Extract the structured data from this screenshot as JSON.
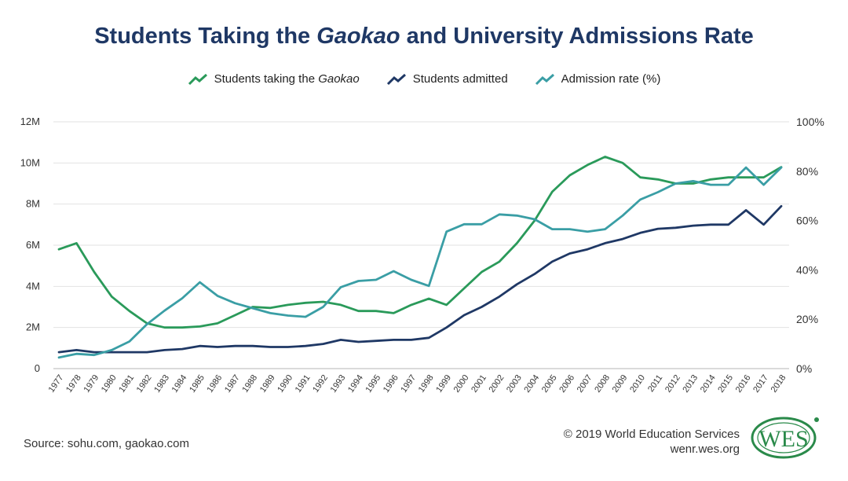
{
  "title_prefix": "Students Taking the ",
  "title_italic": "Gaokao",
  "title_suffix": " and University Admissions Rate",
  "legend": [
    {
      "prefix": "Students taking the ",
      "italic": "Gaokao",
      "color": "#2a9a5a"
    },
    {
      "prefix": "Students admitted",
      "italic": "",
      "color": "#1f3865"
    },
    {
      "prefix": "Admission rate (%)",
      "italic": "",
      "color": "#3a9ea5"
    }
  ],
  "source": "Source: sohu.com, gaokao.com",
  "copyright": "© 2019 World Education Services",
  "website": "wenr.wes.org",
  "logo_text": "WES",
  "chart_data": {
    "type": "line",
    "x": [
      "1977",
      "1978",
      "1979",
      "1980",
      "1981",
      "1982",
      "1983",
      "1984",
      "1985",
      "1986",
      "1987",
      "1988",
      "1989",
      "1990",
      "1991",
      "1992",
      "1993",
      "1994",
      "1995",
      "1996",
      "1997",
      "1998",
      "1999",
      "2000",
      "2001",
      "2002",
      "2003",
      "2004",
      "2005",
      "2006",
      "2007",
      "2008",
      "2009",
      "2010",
      "2011",
      "2012",
      "2013",
      "2014",
      "2015",
      "2016",
      "2017",
      "2018"
    ],
    "y_left_ticks": [
      "0",
      "2M",
      "4M",
      "6M",
      "8M",
      "10M",
      "12M"
    ],
    "y_left_lim": [
      0,
      12
    ],
    "y_right_ticks": [
      "0%",
      "20%",
      "40%",
      "60%",
      "80%",
      "100%"
    ],
    "y_right_lim": [
      0,
      100
    ],
    "series": [
      {
        "name": "Students taking the Gaokao",
        "axis": "left",
        "color": "#2a9a5a",
        "values": [
          5.8,
          6.1,
          4.7,
          3.5,
          2.8,
          2.2,
          2.0,
          2.0,
          2.05,
          2.2,
          2.6,
          3.0,
          2.95,
          3.1,
          3.2,
          3.25,
          3.1,
          2.8,
          2.8,
          2.7,
          3.1,
          3.4,
          3.1,
          3.9,
          4.7,
          5.2,
          6.1,
          7.2,
          8.6,
          9.4,
          9.9,
          10.3,
          10.0,
          9.3,
          9.2,
          9.0,
          9.0,
          9.2,
          9.3,
          9.3,
          9.3,
          9.8
        ]
      },
      {
        "name": "Students admitted",
        "axis": "left",
        "color": "#1f3865",
        "values": [
          0.8,
          0.9,
          0.8,
          0.8,
          0.8,
          0.8,
          0.9,
          0.95,
          1.1,
          1.05,
          1.1,
          1.1,
          1.05,
          1.05,
          1.1,
          1.2,
          1.4,
          1.3,
          1.35,
          1.4,
          1.4,
          1.5,
          2.0,
          2.6,
          3.0,
          3.5,
          4.1,
          4.6,
          5.2,
          5.6,
          5.8,
          6.1,
          6.3,
          6.6,
          6.8,
          6.85,
          6.95,
          7.0,
          7.0,
          7.7,
          7.0,
          7.9
        ]
      },
      {
        "name": "Admission rate (%)",
        "axis": "right",
        "color": "#3a9ea5",
        "values": [
          4.5,
          6,
          5.5,
          7.5,
          11,
          18,
          23.5,
          28.5,
          35,
          29.5,
          26.5,
          24.5,
          22.5,
          21.5,
          21,
          25,
          33,
          35.5,
          36,
          39.5,
          36,
          33.5,
          55.5,
          58.5,
          58.5,
          62.5,
          62,
          60.5,
          56.5,
          56.5,
          55.5,
          56.5,
          62,
          68.5,
          71.5,
          75,
          76,
          74.5,
          74.5,
          81.5,
          74.5,
          81.5
        ]
      }
    ],
    "grid": "horizontal",
    "legend_position": "top"
  }
}
